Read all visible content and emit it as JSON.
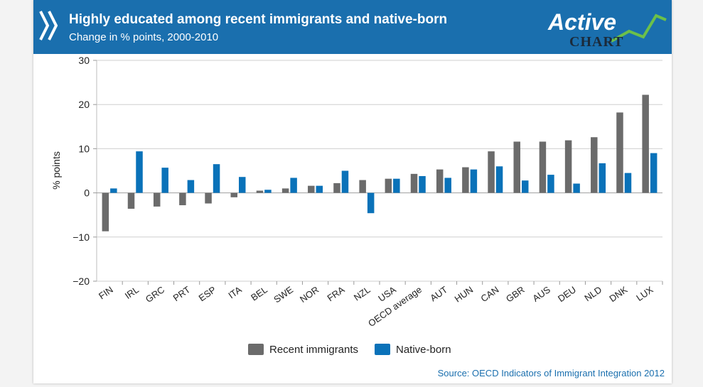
{
  "header": {
    "title": "Highly educated among recent immigrants and native-born",
    "subtitle": "Change in % points, 2000-2010",
    "logo_line1": "Active",
    "logo_line2": "CHART"
  },
  "source": "Source: OECD Indicators of Immigrant Integration 2012",
  "colors": {
    "header_bg": "#1a6fae",
    "recent_immigrants": "#6b6b6b",
    "native_born": "#0a72b9",
    "logo_green": "#6cc04a"
  },
  "chart_data": {
    "type": "bar",
    "ylabel": "% points",
    "ylim": [
      -20,
      30
    ],
    "yticks": [
      "30",
      "20",
      "10",
      "0",
      "−10",
      "−20"
    ],
    "ytick_values": [
      30,
      20,
      10,
      0,
      -10,
      -20
    ],
    "grid": true,
    "legend_position": "bottom",
    "categories": [
      "FIN",
      "IRL",
      "GRC",
      "PRT",
      "ESP",
      "ITA",
      "BEL",
      "SWE",
      "NOR",
      "FRA",
      "NZL",
      "USA",
      "OECD average",
      "AUT",
      "HUN",
      "CAN",
      "GBR",
      "AUS",
      "DEU",
      "NLD",
      "DNK",
      "LUX"
    ],
    "series": [
      {
        "name": "Recent immigrants",
        "color": "#6b6b6b",
        "values": [
          -8.7,
          -3.6,
          -3.1,
          -2.8,
          -2.4,
          -1.0,
          0.5,
          1.0,
          1.6,
          2.2,
          2.9,
          3.2,
          4.3,
          5.3,
          5.8,
          9.4,
          11.6,
          11.6,
          11.9,
          12.6,
          18.2,
          22.2
        ]
      },
      {
        "name": "Native-born",
        "color": "#0a72b9",
        "values": [
          1.0,
          9.4,
          5.7,
          2.9,
          6.5,
          3.6,
          0.7,
          3.4,
          1.6,
          5.0,
          -4.6,
          3.2,
          3.8,
          3.4,
          5.3,
          6.0,
          2.8,
          4.1,
          2.1,
          6.7,
          4.5,
          9.0
        ]
      }
    ]
  }
}
